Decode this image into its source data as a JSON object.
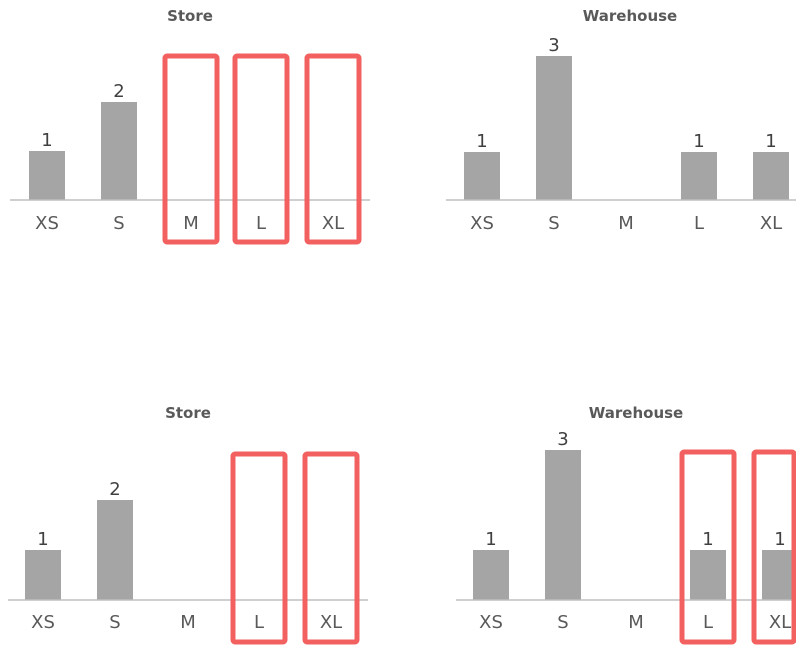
{
  "colors": {
    "bar": "#a5a5a5",
    "axis": "#bfbfbf",
    "highlight": "#f26060",
    "text": "#595959"
  },
  "chart_data": [
    {
      "type": "bar",
      "title": "Store",
      "categories": [
        "XS",
        "S",
        "M",
        "L",
        "XL"
      ],
      "values": [
        1,
        2,
        0,
        0,
        0
      ],
      "ylim": [
        0,
        3
      ],
      "grid": false,
      "highlighted_categories": [
        "M",
        "L",
        "XL"
      ]
    },
    {
      "type": "bar",
      "title": "Warehouse",
      "categories": [
        "XS",
        "S",
        "M",
        "L",
        "XL"
      ],
      "values": [
        1,
        3,
        0,
        1,
        1
      ],
      "ylim": [
        0,
        3
      ],
      "grid": false,
      "highlighted_categories": []
    },
    {
      "type": "bar",
      "title": "Store",
      "categories": [
        "XS",
        "S",
        "M",
        "L",
        "XL"
      ],
      "values": [
        1,
        2,
        0,
        0,
        0
      ],
      "ylim": [
        0,
        3
      ],
      "grid": false,
      "highlighted_categories": [
        "L",
        "XL"
      ]
    },
    {
      "type": "bar",
      "title": "Warehouse",
      "categories": [
        "XS",
        "S",
        "M",
        "L",
        "XL"
      ],
      "values": [
        1,
        3,
        0,
        1,
        1
      ],
      "ylim": [
        0,
        3
      ],
      "grid": false,
      "highlighted_categories": [
        "L",
        "XL"
      ]
    }
  ]
}
